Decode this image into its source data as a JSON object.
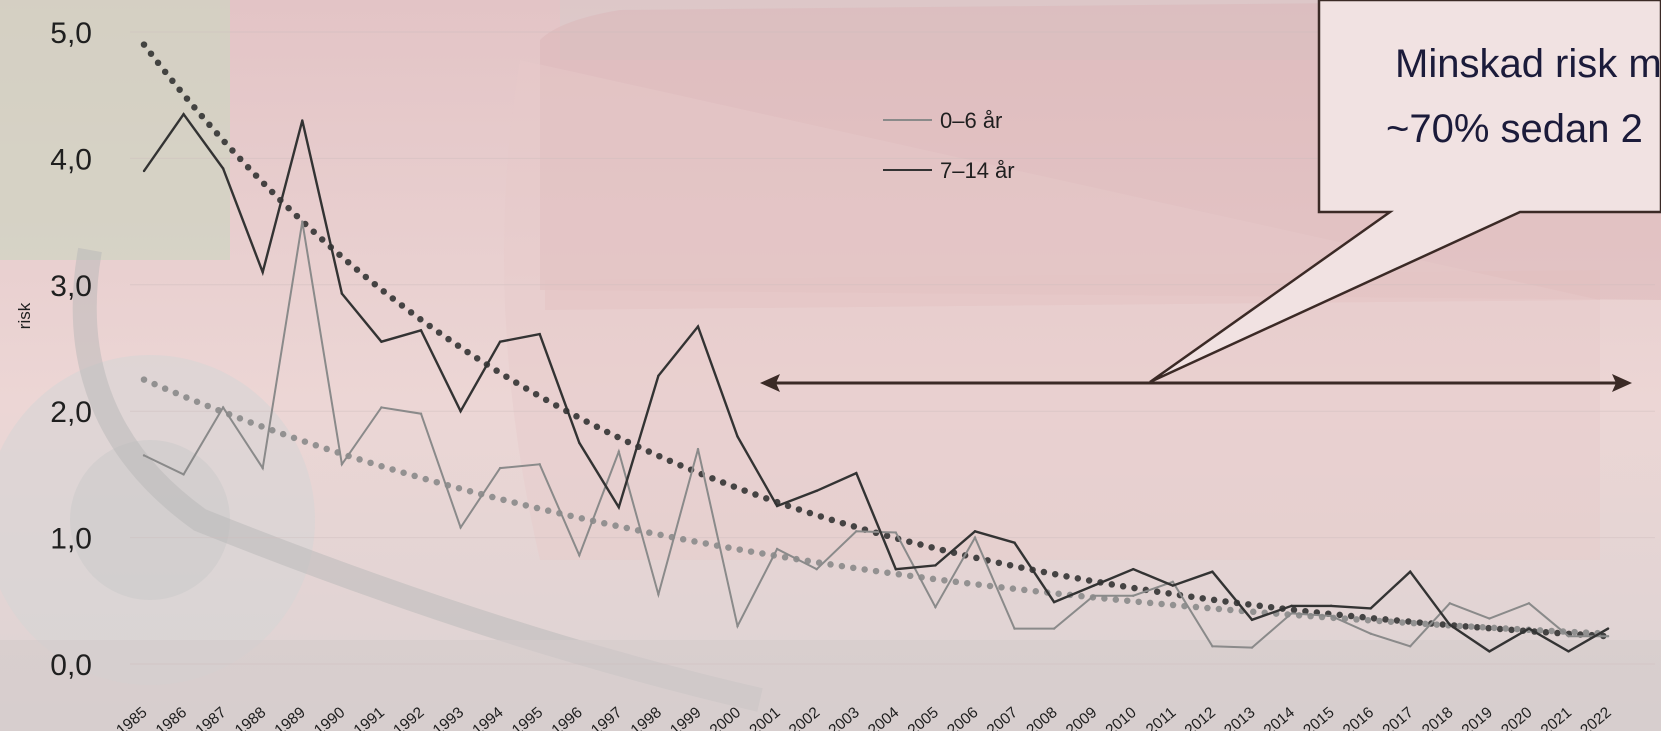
{
  "chart_data": {
    "type": "line",
    "title": "",
    "xlabel": "",
    "ylabel": "risk",
    "ylim": [
      0,
      5
    ],
    "yticks": [
      "0,0",
      "1,0",
      "2,0",
      "3,0",
      "4,0",
      "5,0"
    ],
    "x": [
      "1985",
      "1986",
      "1987",
      "1988",
      "1989",
      "1990",
      "1991",
      "1992",
      "1993",
      "1994",
      "1995",
      "1996",
      "1997",
      "1998",
      "1999",
      "2000",
      "2001",
      "2002",
      "2003",
      "2004",
      "2005",
      "2006",
      "2007",
      "2008",
      "2009",
      "2010",
      "2011",
      "2012",
      "2013",
      "2014",
      "2015",
      "2016",
      "2017",
      "2018",
      "2019",
      "2020",
      "2021",
      "2022"
    ],
    "series": [
      {
        "name": "0–6 år",
        "color": "#8a8a8a",
        "values": [
          1.65,
          1.5,
          2.03,
          1.55,
          3.5,
          1.58,
          2.03,
          1.98,
          1.08,
          1.55,
          1.58,
          0.86,
          1.68,
          0.55,
          1.7,
          0.3,
          0.91,
          0.75,
          1.05,
          1.04,
          0.45,
          1.0,
          0.28,
          0.28,
          0.54,
          0.54,
          0.65,
          0.14,
          0.13,
          0.4,
          0.38,
          0.24,
          0.14,
          0.48,
          0.36,
          0.48,
          0.22,
          0.22
        ]
      },
      {
        "name": "7–14 år",
        "color": "#333333",
        "values": [
          3.9,
          4.35,
          3.92,
          3.1,
          4.3,
          2.93,
          2.55,
          2.64,
          2.0,
          2.55,
          2.61,
          1.75,
          1.24,
          2.28,
          2.67,
          1.8,
          1.25,
          1.37,
          1.51,
          0.75,
          0.78,
          1.05,
          0.96,
          0.49,
          0.62,
          0.75,
          0.62,
          0.73,
          0.35,
          0.46,
          0.46,
          0.44,
          0.73,
          0.31,
          0.1,
          0.28,
          0.1,
          0.28
        ]
      }
    ],
    "trendlines": [
      {
        "series": "7–14 år",
        "style": "dotted",
        "color": "#333333",
        "start": 4.9,
        "end": 0.22
      },
      {
        "series": "0–6 år",
        "style": "dotted",
        "color": "#8a8a8a",
        "start": 2.25,
        "end": 0.24
      }
    ],
    "legend": {
      "position": "top-center"
    },
    "annotation": {
      "lines": [
        "Minskad risk m",
        "~70% sedan 2"
      ],
      "range": [
        "2000",
        "2022"
      ]
    },
    "background": "photo of a crashed red car"
  }
}
